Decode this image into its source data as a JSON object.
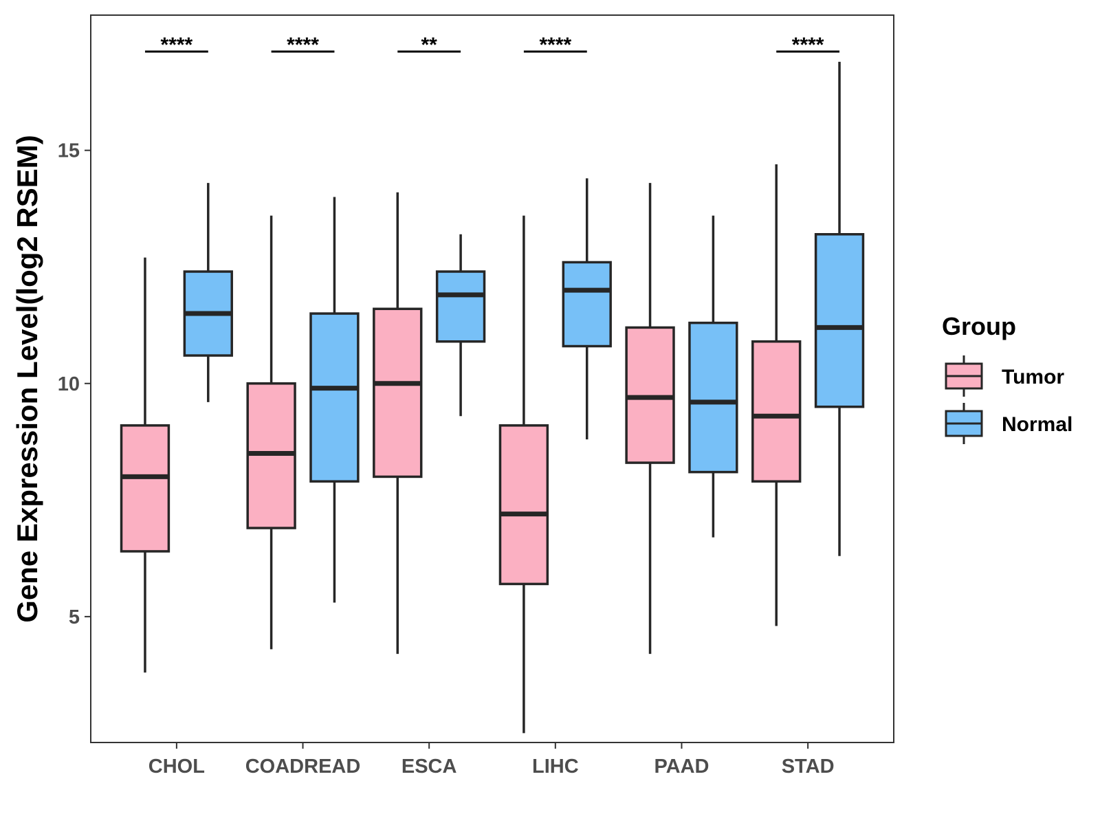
{
  "chart_data": {
    "type": "boxplot",
    "ylabel": "Gene Expression Level(log2 RSEM)",
    "xlabel": "",
    "ylim": [
      2.3,
      17.9
    ],
    "yticks": [
      5,
      10,
      15
    ],
    "categories": [
      "CHOL",
      "COADREAD",
      "ESCA",
      "LIHC",
      "PAAD",
      "STAD"
    ],
    "series": [
      {
        "name": "Tumor",
        "color": "#fbb0c2",
        "boxes": [
          {
            "min": 3.8,
            "q1": 6.4,
            "median": 8.0,
            "q3": 9.1,
            "max": 12.7
          },
          {
            "min": 4.3,
            "q1": 6.9,
            "median": 8.5,
            "q3": 10.0,
            "max": 13.6
          },
          {
            "min": 4.2,
            "q1": 8.0,
            "median": 10.0,
            "q3": 11.6,
            "max": 14.1
          },
          {
            "min": 2.5,
            "q1": 5.7,
            "median": 7.2,
            "q3": 9.1,
            "max": 13.6
          },
          {
            "min": 4.2,
            "q1": 8.3,
            "median": 9.7,
            "q3": 11.2,
            "max": 14.3
          },
          {
            "min": 4.8,
            "q1": 7.9,
            "median": 9.3,
            "q3": 10.9,
            "max": 14.7
          }
        ]
      },
      {
        "name": "Normal",
        "color": "#77c0f7",
        "boxes": [
          {
            "min": 9.6,
            "q1": 10.6,
            "median": 11.5,
            "q3": 12.4,
            "max": 14.3
          },
          {
            "min": 5.3,
            "q1": 7.9,
            "median": 9.9,
            "q3": 11.5,
            "max": 14.0
          },
          {
            "min": 9.3,
            "q1": 10.9,
            "median": 11.9,
            "q3": 12.4,
            "max": 13.2
          },
          {
            "min": 8.8,
            "q1": 10.8,
            "median": 12.0,
            "q3": 12.6,
            "max": 14.4
          },
          {
            "min": 6.7,
            "q1": 8.1,
            "median": 9.6,
            "q3": 11.3,
            "max": 13.6
          },
          {
            "min": 6.3,
            "q1": 9.5,
            "median": 11.2,
            "q3": 13.2,
            "max": 16.9
          }
        ]
      }
    ],
    "significance": [
      "****",
      "****",
      "**",
      "****",
      "",
      "****"
    ],
    "legend": {
      "title": "Group",
      "position": "right",
      "entries": [
        "Tumor",
        "Normal"
      ]
    },
    "grid": false
  }
}
